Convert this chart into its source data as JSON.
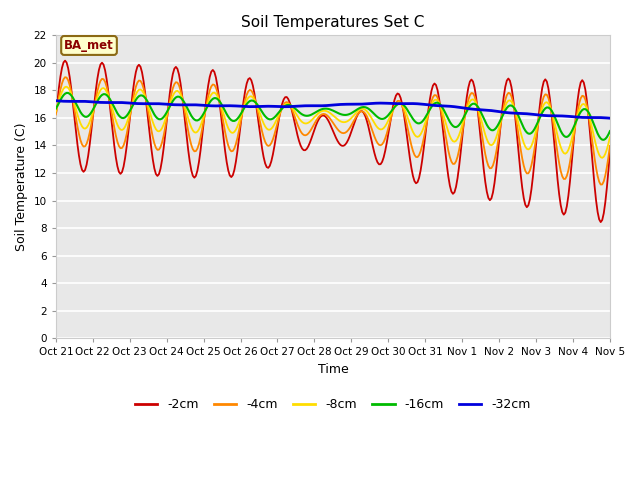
{
  "title": "Soil Temperatures Set C",
  "xlabel": "Time",
  "ylabel": "Soil Temperature (C)",
  "ylim": [
    0,
    22
  ],
  "yticks": [
    0,
    2,
    4,
    6,
    8,
    10,
    12,
    14,
    16,
    18,
    20,
    22
  ],
  "annotation_text": "BA_met",
  "fig_bg_color": "#ffffff",
  "plot_bg_color": "#e8e8e8",
  "colors": {
    "-2cm": "#cc0000",
    "-4cm": "#ff8800",
    "-8cm": "#ffdd00",
    "-16cm": "#00bb00",
    "-32cm": "#0000dd"
  },
  "x_labels": [
    "Oct 21",
    "Oct 22",
    "Oct 23",
    "Oct 24",
    "Oct 25",
    "Oct 26",
    "Oct 27",
    "Oct 28",
    "Oct 29",
    "Oct 30",
    "Oct 31",
    "Nov 1",
    "Nov 2",
    "Nov 3",
    "Nov 4",
    "Nov 5"
  ],
  "figsize": [
    6.4,
    4.8
  ],
  "dpi": 100
}
